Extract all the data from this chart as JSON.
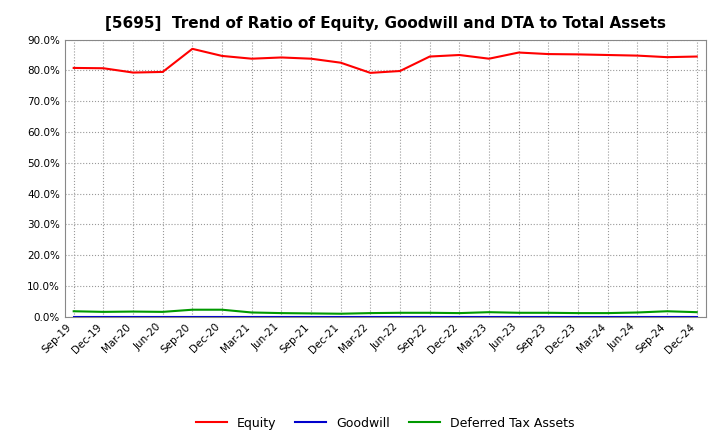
{
  "title": "[5695]  Trend of Ratio of Equity, Goodwill and DTA to Total Assets",
  "x_labels": [
    "Sep-19",
    "Dec-19",
    "Mar-20",
    "Jun-20",
    "Sep-20",
    "Dec-20",
    "Mar-21",
    "Jun-21",
    "Sep-21",
    "Dec-21",
    "Mar-22",
    "Jun-22",
    "Sep-22",
    "Dec-22",
    "Mar-23",
    "Jun-23",
    "Sep-23",
    "Dec-23",
    "Mar-24",
    "Jun-24",
    "Sep-24",
    "Dec-24"
  ],
  "equity": [
    80.8,
    80.7,
    79.3,
    79.5,
    87.0,
    84.7,
    83.8,
    84.2,
    83.8,
    82.5,
    79.2,
    79.8,
    84.5,
    85.0,
    83.8,
    85.8,
    85.3,
    85.2,
    85.0,
    84.8,
    84.3,
    84.5
  ],
  "goodwill": [
    0.0,
    0.0,
    0.0,
    0.0,
    0.0,
    0.0,
    0.0,
    0.0,
    0.0,
    0.0,
    0.0,
    0.0,
    0.0,
    0.0,
    0.0,
    0.0,
    0.0,
    0.0,
    0.0,
    0.0,
    0.0,
    0.0
  ],
  "dta": [
    1.8,
    1.6,
    1.7,
    1.6,
    2.3,
    2.3,
    1.4,
    1.2,
    1.1,
    1.0,
    1.2,
    1.3,
    1.3,
    1.2,
    1.5,
    1.3,
    1.3,
    1.2,
    1.2,
    1.4,
    1.8,
    1.5
  ],
  "equity_color": "#FF0000",
  "goodwill_color": "#0000CC",
  "dta_color": "#009900",
  "ylim": [
    0.0,
    90.0
  ],
  "yticks": [
    0.0,
    10.0,
    20.0,
    30.0,
    40.0,
    50.0,
    60.0,
    70.0,
    80.0,
    90.0
  ],
  "background_color": "#FFFFFF",
  "plot_bg_color": "#FFFFFF",
  "grid_color": "#999999",
  "title_fontsize": 11,
  "tick_fontsize": 7.5,
  "legend_fontsize": 9
}
